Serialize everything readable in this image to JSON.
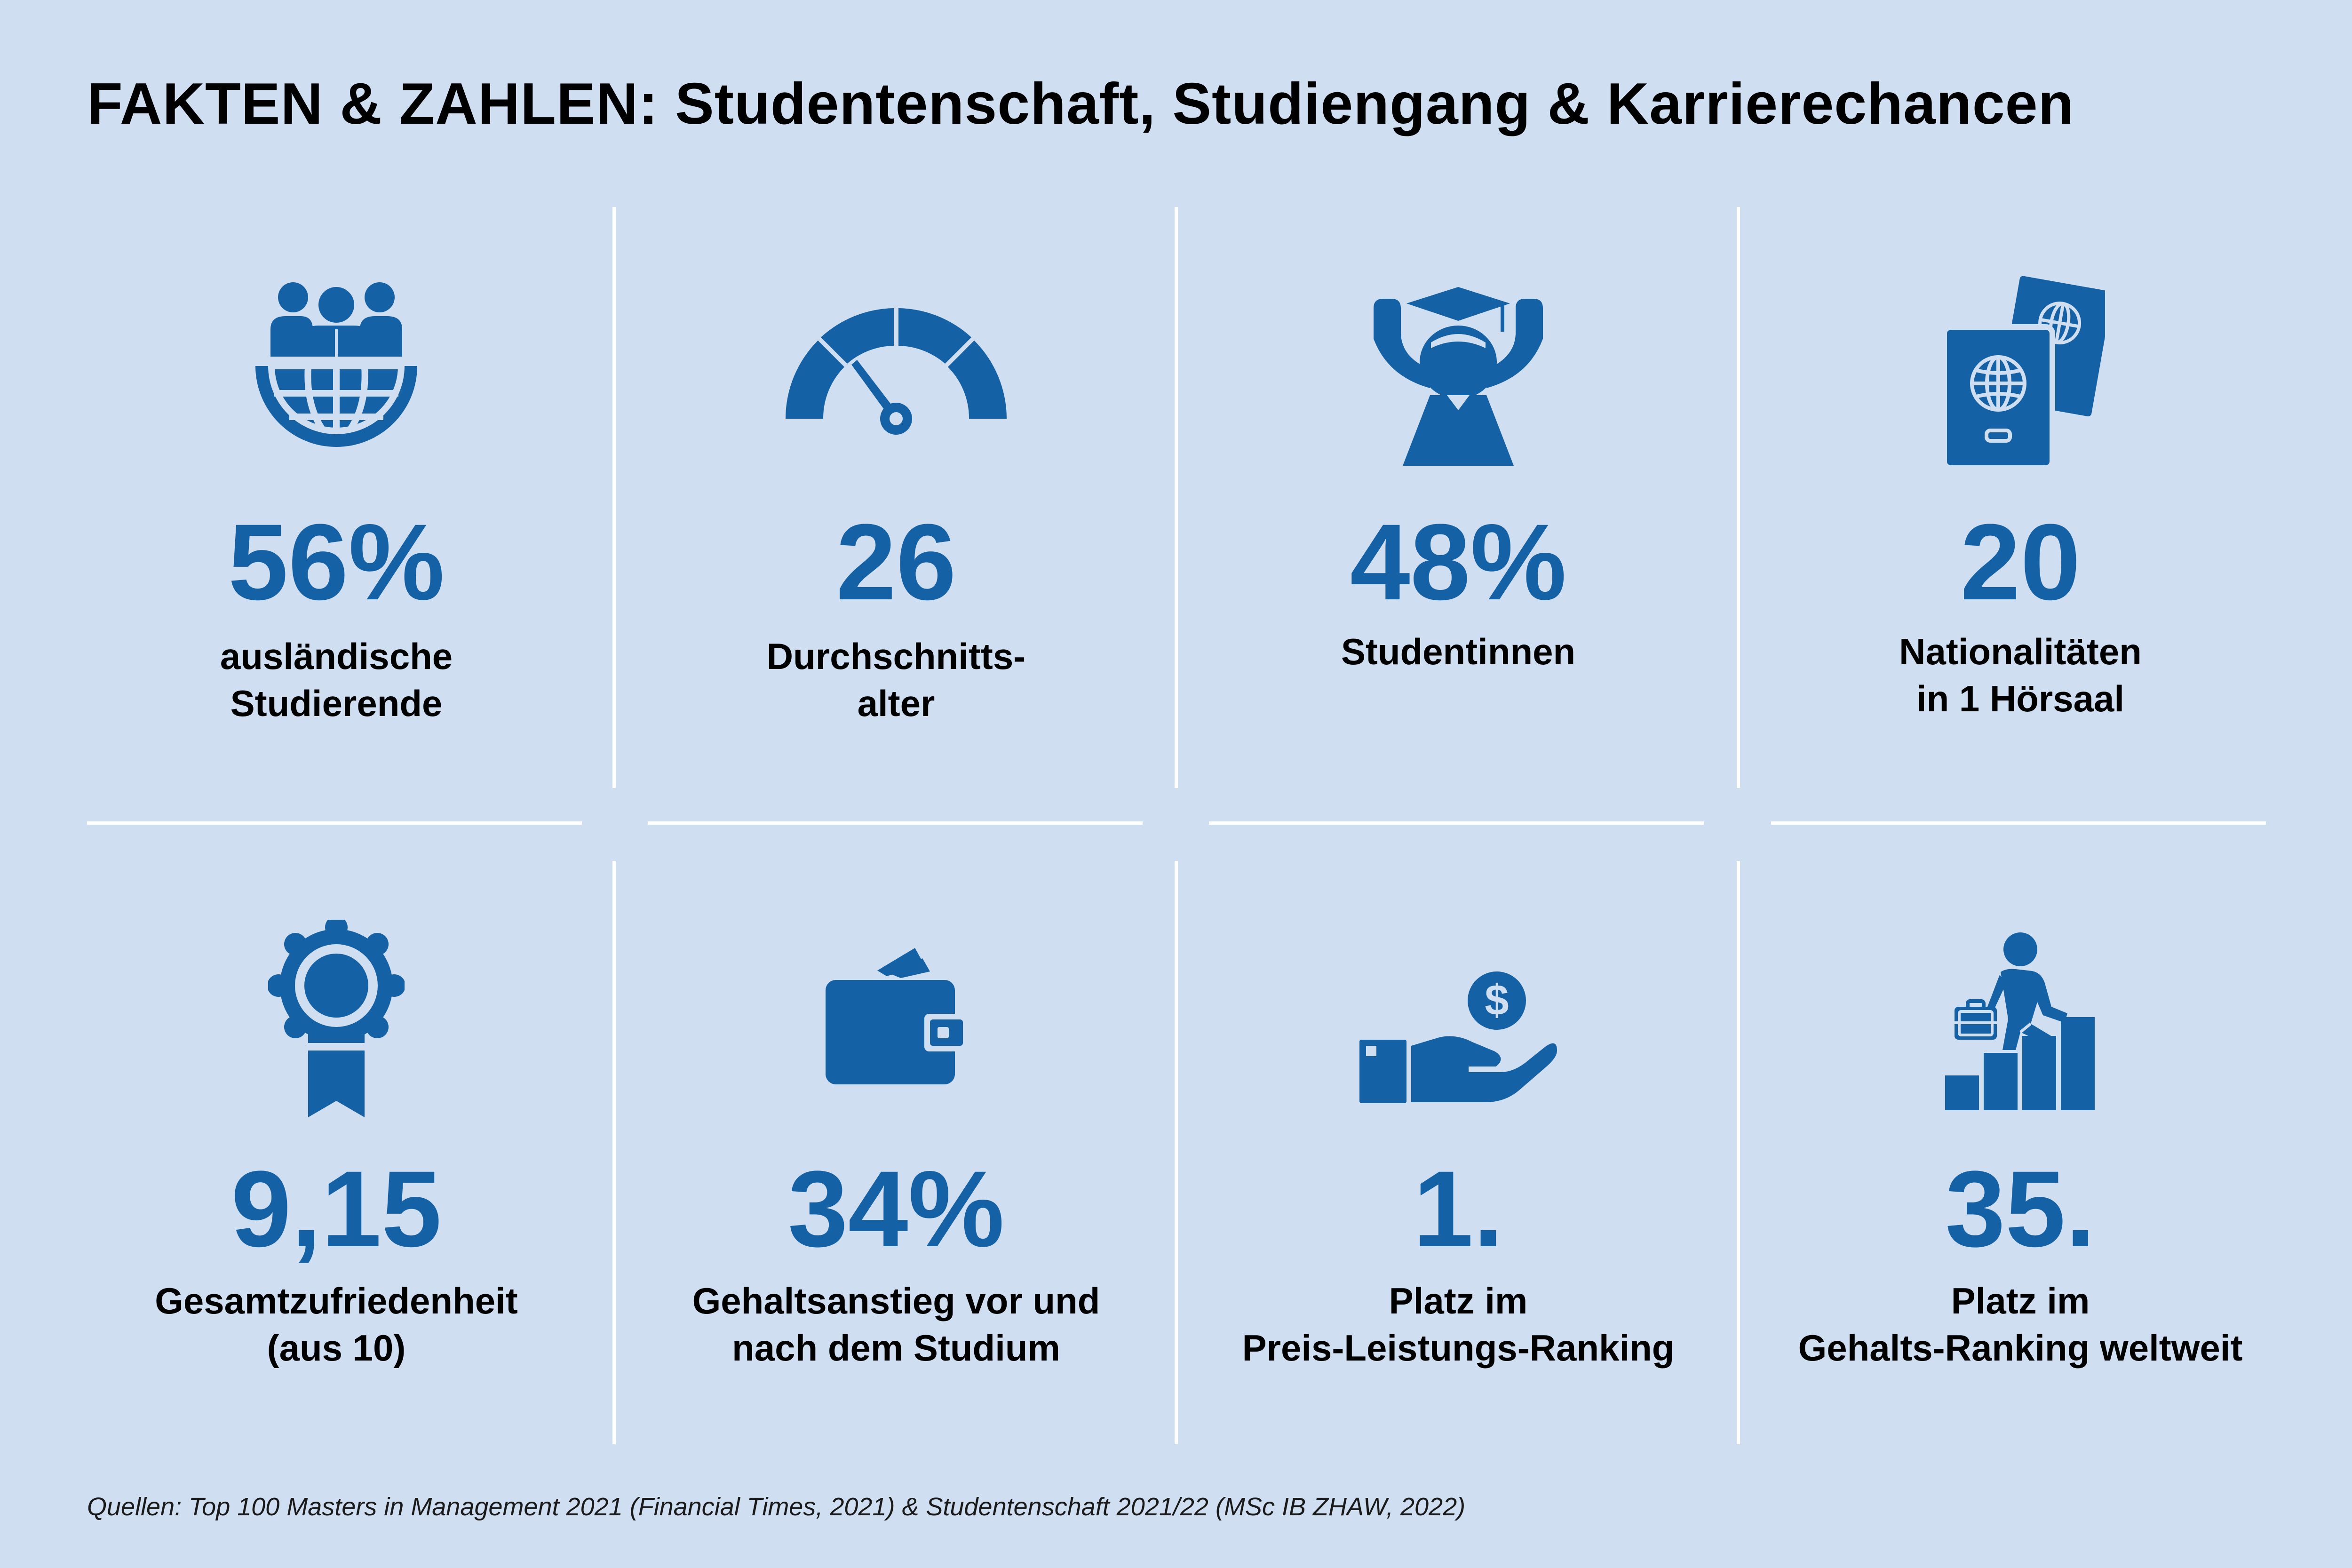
{
  "title": "FAKTEN & ZAHLEN: Studentenschaft, Studiengang & Karrierechancen",
  "colors": {
    "background": "#d0def1",
    "accent": "#1461a6",
    "divider": "#ffffff",
    "text": "#000000"
  },
  "facts": [
    {
      "value": "56%",
      "label_line1": "ausländische",
      "label_line2": "Studierende",
      "icon": "global-students-icon"
    },
    {
      "value": "26",
      "label_line1": "Durchschnitts-",
      "label_line2": "alter",
      "icon": "speedometer-icon"
    },
    {
      "value": "48%",
      "label_line1": "Studentinnen",
      "label_line2": "",
      "icon": "graduate-icon"
    },
    {
      "value": "20",
      "label_line1": "Nationalitäten",
      "label_line2": "in 1 Hörsaal",
      "icon": "passports-icon"
    },
    {
      "value": "9,15",
      "label_line1": "Gesamtzufriedenheit",
      "label_line2": "(aus 10)",
      "icon": "award-icon"
    },
    {
      "value": "34%",
      "label_line1": "Gehaltsanstieg vor und",
      "label_line2": "nach dem Studium",
      "icon": "wallet-icon"
    },
    {
      "value": "1.",
      "label_line1": "Platz im",
      "label_line2": "Preis-Leistungs-Ranking",
      "icon": "money-hand-icon"
    },
    {
      "value": "35.",
      "label_line1": "Platz im",
      "label_line2": "Gehalts-Ranking weltweit",
      "icon": "career-steps-icon"
    }
  ],
  "source": "Quellen: Top 100 Masters in Management 2021 (Financial Times, 2021) & Studentenschaft 2021/22 (MSc IB ZHAW, 2022)"
}
